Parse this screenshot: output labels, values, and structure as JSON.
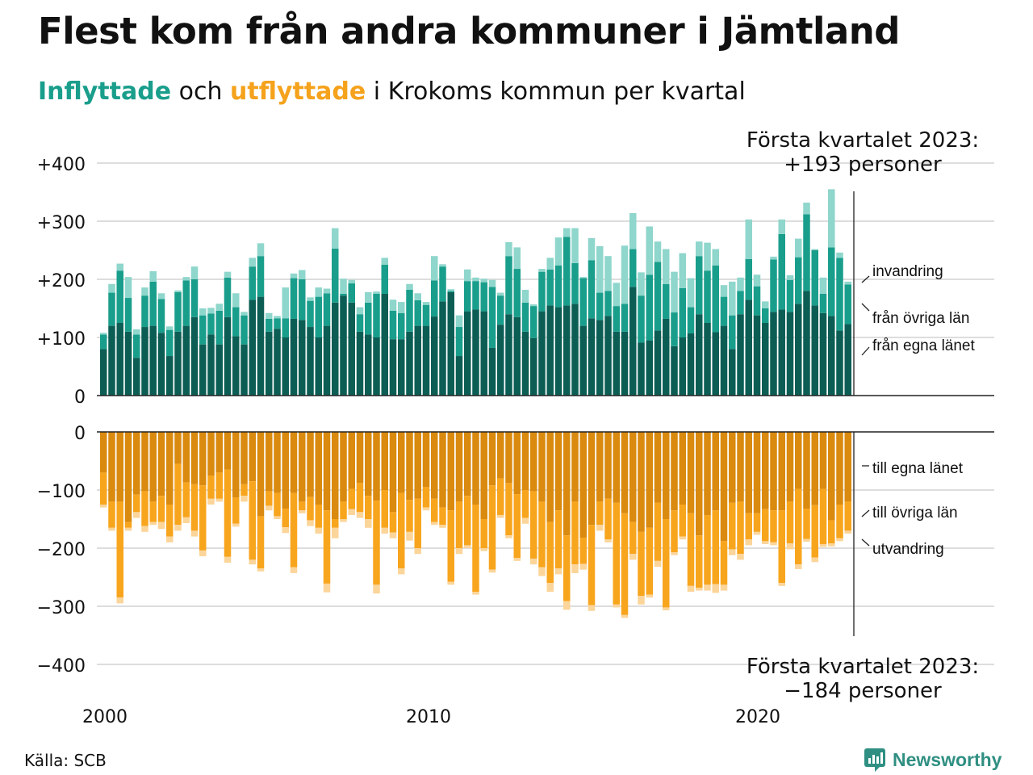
{
  "title": "Flest kom från andra kommuner i Jämtland",
  "subtitle": {
    "in_word": "Inflyttade",
    "and_word": " och ",
    "out_word": "utflyttade",
    "rest": " i Krokoms kommun per kvartal"
  },
  "source": "Källa: SCB",
  "brand": "Newsworthy",
  "colors": {
    "in_same_lan": "#0c5e55",
    "in_other_lan": "#1a9e8c",
    "in_immigration": "#8fd6cc",
    "out_same_lan": "#d98a0f",
    "out_other_lan": "#f8a51e",
    "out_emigration": "#fbd59a",
    "grid": "#dddddd",
    "brand": "#2f8f82"
  },
  "chart_data": {
    "type": "bar",
    "stacked": true,
    "x_label_first": "2000 Q1",
    "x_ticks": [
      "2000",
      "2010",
      "2020"
    ],
    "in_yticks": [
      "+400",
      "+300",
      "+200",
      "+100",
      "0"
    ],
    "out_yticks": [
      "0",
      "−100",
      "−200",
      "−300",
      "−400"
    ],
    "in_ylim": [
      0,
      400
    ],
    "out_ylim": [
      -400,
      0
    ],
    "annotations": {
      "in_latest": [
        "Första kvartalet 2023:",
        "+193 personer"
      ],
      "out_latest": [
        "Första kvartalet 2023:",
        "−184 personer"
      ]
    },
    "in_series_labels": [
      "invandring",
      "från övriga län",
      "från egna länet"
    ],
    "out_series_labels": [
      "till egna länet",
      "till övriga län",
      "utvandring"
    ],
    "inflow": {
      "same_lan": [
        80,
        120,
        125,
        110,
        65,
        118,
        120,
        108,
        68,
        110,
        120,
        135,
        88,
        105,
        88,
        135,
        102,
        88,
        165,
        170,
        110,
        115,
        100,
        132,
        130,
        118,
        100,
        120,
        160,
        172,
        160,
        110,
        105,
        100,
        175,
        97,
        97,
        110,
        120,
        120,
        136,
        162,
        178,
        68,
        145,
        148,
        145,
        82,
        122,
        140,
        135,
        110,
        99,
        145,
        155,
        152,
        155,
        158,
        120,
        133,
        130,
        137,
        110,
        110,
        187,
        91,
        95,
        112,
        132,
        85,
        100,
        107,
        140,
        125,
        109,
        120,
        80,
        140,
        165,
        138,
        125,
        144,
        148,
        144,
        158,
        180,
        155,
        142,
        137,
        112,
        123
      ],
      "other_lan": [
        25,
        57,
        90,
        58,
        40,
        54,
        76,
        58,
        45,
        68,
        78,
        65,
        50,
        36,
        58,
        68,
        50,
        50,
        57,
        70,
        22,
        18,
        33,
        70,
        70,
        45,
        70,
        56,
        93,
        3,
        33,
        30,
        55,
        75,
        50,
        49,
        45,
        72,
        44,
        36,
        62,
        60,
        2,
        50,
        52,
        49,
        50,
        105,
        50,
        100,
        83,
        50,
        55,
        68,
        62,
        72,
        118,
        70,
        82,
        100,
        47,
        43,
        44,
        48,
        65,
        81,
        113,
        118,
        60,
        58,
        85,
        45,
        100,
        90,
        115,
        50,
        58,
        40,
        70,
        50,
        25,
        90,
        130,
        55,
        80,
        132,
        95,
        33,
        118,
        125,
        68
      ],
      "immigration": [
        3,
        15,
        12,
        36,
        9,
        14,
        18,
        10,
        6,
        3,
        6,
        22,
        12,
        10,
        12,
        10,
        24,
        6,
        15,
        22,
        10,
        4,
        53,
        8,
        16,
        6,
        16,
        8,
        35,
        26,
        6,
        12,
        18,
        4,
        12,
        19,
        19,
        10,
        12,
        5,
        42,
        4,
        3,
        20,
        20,
        6,
        6,
        12,
        5,
        24,
        37,
        22,
        3,
        5,
        20,
        48,
        15,
        60,
        2,
        38,
        80,
        60,
        40,
        100,
        62,
        40,
        83,
        35,
        60,
        70,
        60,
        50,
        25,
        48,
        28,
        20,
        58,
        23,
        68,
        20,
        12,
        5,
        25,
        8,
        32,
        20,
        2,
        28,
        100,
        9,
        5
      ]
    },
    "outflow": {
      "same_lan": [
        70,
        120,
        120,
        155,
        108,
        102,
        120,
        110,
        125,
        55,
        87,
        90,
        92,
        75,
        70,
        65,
        113,
        90,
        85,
        145,
        102,
        105,
        132,
        105,
        120,
        112,
        125,
        135,
        150,
        120,
        98,
        88,
        110,
        118,
        100,
        138,
        105,
        117,
        115,
        95,
        115,
        130,
        135,
        120,
        110,
        125,
        150,
        92,
        80,
        88,
        107,
        100,
        102,
        120,
        155,
        135,
        178,
        120,
        182,
        160,
        120,
        115,
        122,
        140,
        155,
        172,
        165,
        122,
        150,
        135,
        125,
        140,
        178,
        143,
        135,
        188,
        122,
        120,
        140,
        140,
        133,
        135,
        135,
        120,
        98,
        132,
        126,
        98,
        152,
        125,
        120
      ],
      "other_lan": [
        55,
        45,
        165,
        10,
        30,
        60,
        35,
        45,
        55,
        105,
        60,
        80,
        112,
        40,
        45,
        150,
        45,
        20,
        135,
        90,
        25,
        40,
        32,
        128,
        15,
        40,
        40,
        126,
        15,
        30,
        35,
        50,
        40,
        145,
        65,
        35,
        130,
        55,
        85,
        35,
        40,
        30,
        123,
        80,
        85,
        150,
        50,
        145,
        63,
        90,
        110,
        48,
        116,
        113,
        105,
        100,
        113,
        108,
        45,
        138,
        40,
        70,
        175,
        175,
        55,
        110,
        115,
        100,
        152,
        72,
        55,
        125,
        90,
        120,
        127,
        75,
        80,
        90,
        45,
        32,
        55,
        55,
        125,
        72,
        130,
        52,
        90,
        95,
        40,
        58,
        50
      ],
      "emigration": [
        5,
        5,
        10,
        5,
        10,
        10,
        5,
        12,
        10,
        10,
        10,
        10,
        10,
        10,
        5,
        10,
        5,
        10,
        8,
        5,
        8,
        5,
        10,
        10,
        5,
        10,
        10,
        15,
        18,
        5,
        10,
        10,
        15,
        15,
        10,
        10,
        10,
        15,
        10,
        5,
        5,
        5,
        5,
        10,
        5,
        5,
        5,
        5,
        5,
        5,
        5,
        10,
        10,
        15,
        15,
        10,
        15,
        15,
        10,
        10,
        10,
        5,
        5,
        5,
        10,
        15,
        5,
        10,
        5,
        5,
        5,
        10,
        5,
        10,
        15,
        10,
        10,
        10,
        10,
        5,
        5,
        5,
        5,
        10,
        8,
        5,
        8,
        5,
        5,
        5,
        5
      ]
    }
  }
}
